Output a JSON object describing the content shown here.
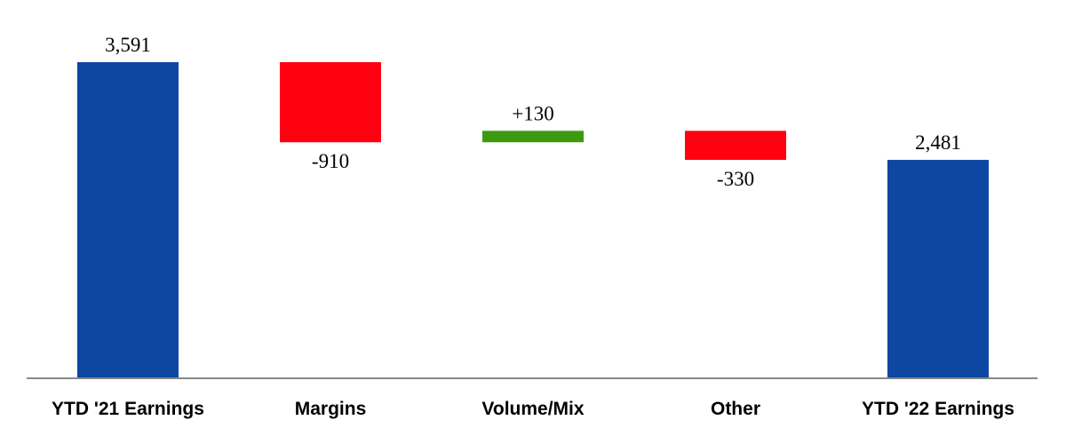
{
  "chart_data": {
    "type": "bar",
    "subtype": "waterfall",
    "title": "",
    "xlabel": "",
    "ylabel": "",
    "categories": [
      "YTD '21 Earnings",
      "Margins",
      "Volume/Mix",
      "Other",
      "YTD '22 Earnings"
    ],
    "values": [
      3591,
      -910,
      130,
      -330,
      2481
    ],
    "kinds": [
      "total",
      "delta",
      "delta",
      "delta",
      "total"
    ],
    "value_labels": [
      "3,591",
      "-910",
      "+130",
      "-330",
      "2,481"
    ],
    "ylim": [
      0,
      3591
    ],
    "grid": false,
    "legend": "none",
    "colors": {
      "total": "#0d47a1",
      "increase": "#3d9a10",
      "decrease": "#ff0011"
    }
  }
}
